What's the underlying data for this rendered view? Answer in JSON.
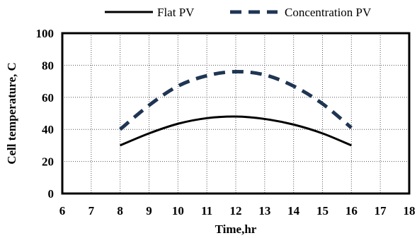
{
  "chart_data": {
    "type": "line",
    "title": "",
    "xlabel": "Time,hr",
    "ylabel": "Cell  temperature, C",
    "xlim": [
      6,
      18
    ],
    "ylim": [
      0,
      100
    ],
    "x_ticks": [
      6,
      7,
      8,
      9,
      10,
      11,
      12,
      13,
      14,
      15,
      16,
      17,
      18
    ],
    "y_ticks": [
      0,
      20,
      40,
      60,
      80,
      100
    ],
    "grid": true,
    "legend_position": "top",
    "series": [
      {
        "name": "Flat PV",
        "style": "solid",
        "color": "#000000",
        "x": [
          8,
          9,
          10,
          11,
          12,
          13,
          14,
          15,
          16
        ],
        "y": [
          30,
          37.5,
          43.5,
          47,
          48,
          46.5,
          43,
          37.5,
          30
        ]
      },
      {
        "name": "Concentration PV",
        "style": "dashed",
        "color": "#1f3553",
        "x": [
          8,
          9,
          10,
          11,
          12,
          13,
          14,
          15,
          16
        ],
        "y": [
          40,
          55,
          67,
          73.5,
          76,
          74,
          67,
          56,
          41
        ]
      }
    ]
  }
}
